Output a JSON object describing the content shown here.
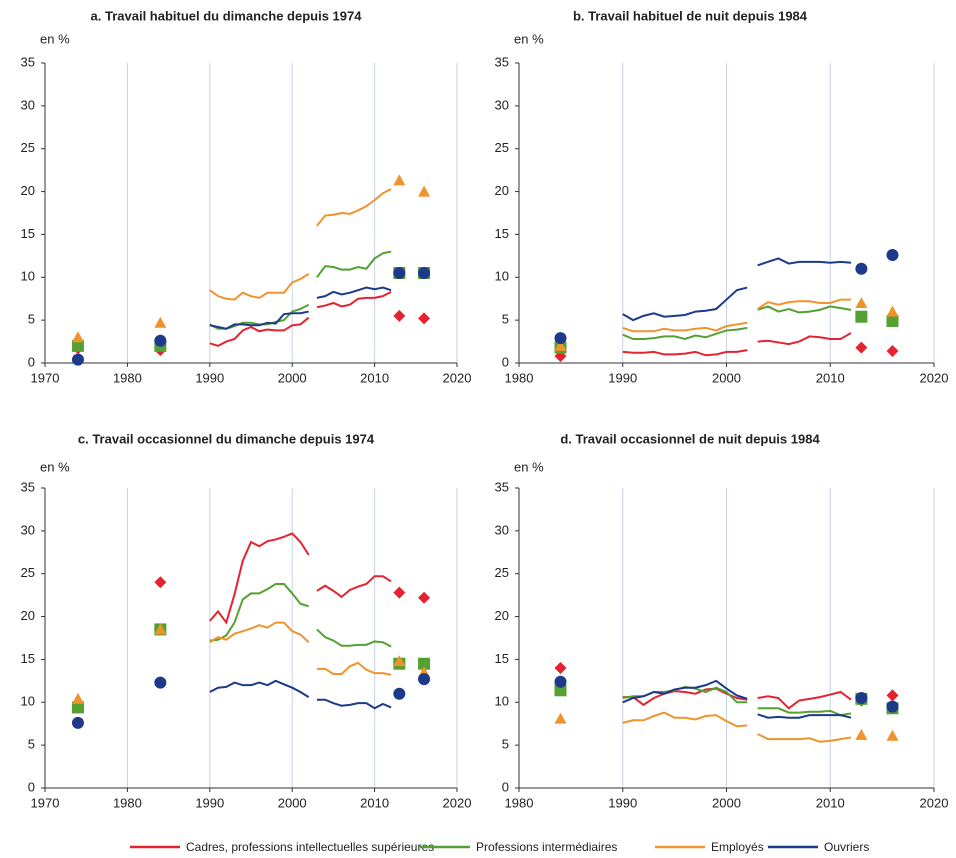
{
  "chart_data": [
    {
      "type": "line",
      "title": "a. Travail habituel du dimanche depuis 1974",
      "y_label": "en %",
      "xlim": [
        1970,
        2020
      ],
      "xticks": [
        1970,
        1980,
        1990,
        2000,
        2010,
        2020
      ],
      "ylim": [
        0,
        35
      ],
      "yticks": [
        0,
        5,
        10,
        15,
        20,
        25,
        30,
        35
      ],
      "grid": "vertical",
      "x": [
        1990,
        1991,
        1992,
        1993,
        1994,
        1995,
        1996,
        1997,
        1998,
        1999,
        2000,
        2001,
        2002,
        2003,
        2004,
        2005,
        2006,
        2007,
        2008,
        2009,
        2010,
        2011,
        2012
      ],
      "line_break_before": 2003,
      "points_x": [
        1974,
        1984,
        2013,
        2016
      ],
      "series": [
        {
          "name": "Cadres, professions intellectuelles supérieures",
          "color": "#e52330",
          "marker": "diamond",
          "values": [
            2.3,
            2.0,
            2.5,
            2.8,
            3.8,
            4.2,
            3.7,
            3.9,
            3.8,
            3.8,
            4.4,
            4.5,
            5.3,
            6.5,
            6.7,
            7.0,
            6.6,
            6.8,
            7.5,
            7.6,
            7.6,
            7.8,
            8.3
          ],
          "points": [
            1.7,
            1.5,
            5.5,
            5.2
          ]
        },
        {
          "name": "Professions intermédiaires",
          "color": "#54a032",
          "marker": "square",
          "values": [
            4.5,
            4.0,
            4.0,
            4.3,
            4.7,
            4.7,
            4.5,
            4.5,
            4.8,
            5.0,
            6.0,
            6.3,
            6.8,
            10.0,
            11.3,
            11.2,
            10.9,
            10.9,
            11.2,
            11.0,
            12.2,
            12.8,
            13.0
          ],
          "points": [
            2.0,
            2.0,
            10.5,
            10.5
          ]
        },
        {
          "name": "Employés",
          "color": "#ef932c",
          "marker": "triangle",
          "values": [
            8.5,
            7.8,
            7.5,
            7.4,
            8.2,
            7.8,
            7.6,
            8.2,
            8.2,
            8.2,
            9.4,
            9.8,
            10.4,
            16.0,
            17.2,
            17.3,
            17.5,
            17.4,
            17.8,
            18.3,
            19.0,
            19.8,
            20.3
          ],
          "points": [
            3.0,
            4.7,
            21.3,
            20.0
          ]
        },
        {
          "name": "Ouvriers",
          "color": "#1d3a8a",
          "marker": "circle",
          "values": [
            4.4,
            4.2,
            4.0,
            4.5,
            4.5,
            4.4,
            4.4,
            4.7,
            4.6,
            5.7,
            5.8,
            5.8,
            6.0,
            7.6,
            7.8,
            8.3,
            8.0,
            8.2,
            8.5,
            8.8,
            8.6,
            8.8,
            8.5
          ],
          "points": [
            0.4,
            2.6,
            10.5,
            10.5
          ]
        }
      ]
    },
    {
      "type": "line",
      "title": "b. Travail habituel de nuit depuis 1984",
      "y_label": "en %",
      "xlim": [
        1980,
        2020
      ],
      "xticks": [
        1980,
        1990,
        2000,
        2010,
        2020
      ],
      "ylim": [
        0,
        35
      ],
      "yticks": [
        0,
        5,
        10,
        15,
        20,
        25,
        30,
        35
      ],
      "grid": "vertical",
      "x": [
        1990,
        1991,
        1992,
        1993,
        1994,
        1995,
        1996,
        1997,
        1998,
        1999,
        2000,
        2001,
        2002,
        2003,
        2004,
        2005,
        2006,
        2007,
        2008,
        2009,
        2010,
        2011,
        2012
      ],
      "line_break_before": 2003,
      "points_x": [
        1984,
        2013,
        2016
      ],
      "series": [
        {
          "name": "Cadres, professions intellectuelles supérieures",
          "color": "#e52330",
          "marker": "diamond",
          "values": [
            1.3,
            1.2,
            1.2,
            1.3,
            1.0,
            1.0,
            1.1,
            1.3,
            0.9,
            1.0,
            1.3,
            1.3,
            1.5,
            2.5,
            2.6,
            2.4,
            2.2,
            2.5,
            3.1,
            3.0,
            2.8,
            2.8,
            3.5
          ],
          "points": [
            0.8,
            1.8,
            1.4
          ]
        },
        {
          "name": "Professions intermédiaires",
          "color": "#54a032",
          "marker": "square",
          "values": [
            3.3,
            2.8,
            2.8,
            2.9,
            3.1,
            3.1,
            2.8,
            3.2,
            3.0,
            3.4,
            3.8,
            3.9,
            4.1,
            6.2,
            6.6,
            6.0,
            6.3,
            5.9,
            6.0,
            6.2,
            6.6,
            6.4,
            6.2
          ],
          "points": [
            1.8,
            5.4,
            4.9
          ]
        },
        {
          "name": "Employés",
          "color": "#ef932c",
          "marker": "triangle",
          "values": [
            4.1,
            3.7,
            3.7,
            3.7,
            4.0,
            3.8,
            3.8,
            4.0,
            4.1,
            3.8,
            4.3,
            4.5,
            4.7,
            6.3,
            7.1,
            6.8,
            7.1,
            7.2,
            7.2,
            7.0,
            7.0,
            7.4,
            7.4
          ],
          "points": [
            2.0,
            7.0,
            6.0
          ]
        },
        {
          "name": "Ouvriers",
          "color": "#1d3a8a",
          "marker": "circle",
          "values": [
            5.7,
            5.0,
            5.5,
            5.8,
            5.4,
            5.5,
            5.6,
            6.0,
            6.1,
            6.3,
            7.4,
            8.5,
            8.8,
            11.4,
            11.8,
            12.2,
            11.6,
            11.8,
            11.8,
            11.8,
            11.7,
            11.8,
            11.7
          ],
          "points": [
            2.9,
            11.0,
            12.6
          ]
        }
      ]
    },
    {
      "type": "line",
      "title": "c. Travail occasionnel du dimanche depuis 1974",
      "y_label": "en %",
      "xlim": [
        1970,
        2020
      ],
      "xticks": [
        1970,
        1980,
        1990,
        2000,
        2010,
        2020
      ],
      "ylim": [
        0,
        35
      ],
      "yticks": [
        0,
        5,
        10,
        15,
        20,
        25,
        30,
        35
      ],
      "grid": "vertical",
      "x": [
        1990,
        1991,
        1992,
        1993,
        1994,
        1995,
        1996,
        1997,
        1998,
        1999,
        2000,
        2001,
        2002,
        2003,
        2004,
        2005,
        2006,
        2007,
        2008,
        2009,
        2010,
        2011,
        2012
      ],
      "line_break_before": 2003,
      "points_x": [
        1974,
        1984,
        2013,
        2016
      ],
      "series": [
        {
          "name": "Cadres, professions intellectuelles supérieures",
          "color": "#e52330",
          "marker": "diamond",
          "values": [
            19.5,
            20.6,
            19.3,
            22.6,
            26.5,
            28.7,
            28.2,
            28.8,
            29.0,
            29.3,
            29.7,
            28.7,
            27.2,
            23.0,
            23.6,
            23.0,
            22.3,
            23.1,
            23.5,
            23.8,
            24.7,
            24.7,
            24.1
          ],
          "points": [
            null,
            24.0,
            22.8,
            22.2
          ]
        },
        {
          "name": "Professions intermédiaires",
          "color": "#54a032",
          "marker": "square",
          "values": [
            17.2,
            17.3,
            17.8,
            19.3,
            22.0,
            22.7,
            22.7,
            23.2,
            23.8,
            23.8,
            22.7,
            21.5,
            21.2,
            18.5,
            17.6,
            17.2,
            16.6,
            16.6,
            16.7,
            16.7,
            17.1,
            17.0,
            16.5
          ],
          "points": [
            9.4,
            18.5,
            14.5,
            14.5
          ]
        },
        {
          "name": "Employés",
          "color": "#ef932c",
          "marker": "triangle",
          "values": [
            17.0,
            17.6,
            17.3,
            18.0,
            18.3,
            18.6,
            19.0,
            18.7,
            19.3,
            19.3,
            18.3,
            17.9,
            17.0,
            13.9,
            13.9,
            13.3,
            13.3,
            14.2,
            14.6,
            13.8,
            13.4,
            13.4,
            13.2
          ],
          "points": [
            10.4,
            18.5,
            14.8,
            13.5
          ]
        },
        {
          "name": "Ouvriers",
          "color": "#1d3a8a",
          "marker": "circle",
          "values": [
            11.2,
            11.7,
            11.8,
            12.3,
            12.0,
            12.0,
            12.3,
            12.0,
            12.5,
            12.1,
            11.7,
            11.2,
            10.6,
            10.3,
            10.3,
            9.9,
            9.6,
            9.7,
            9.9,
            9.9,
            9.3,
            9.8,
            9.4
          ],
          "points": [
            7.6,
            12.3,
            11.0,
            12.7
          ]
        }
      ]
    },
    {
      "type": "line",
      "title": "d. Travail occasionnel de nuit depuis 1984",
      "y_label": "en %",
      "xlim": [
        1980,
        2020
      ],
      "xticks": [
        1980,
        1990,
        2000,
        2010,
        2020
      ],
      "ylim": [
        0,
        35
      ],
      "yticks": [
        0,
        5,
        10,
        15,
        20,
        25,
        30,
        35
      ],
      "grid": "vertical",
      "x": [
        1990,
        1991,
        1992,
        1993,
        1994,
        1995,
        1996,
        1997,
        1998,
        1999,
        2000,
        2001,
        2002,
        2003,
        2004,
        2005,
        2006,
        2007,
        2008,
        2009,
        2010,
        2011,
        2012
      ],
      "line_break_before": 2003,
      "points_x": [
        1984,
        2013,
        2016
      ],
      "series": [
        {
          "name": "Cadres, professions intellectuelles supérieures",
          "color": "#e52330",
          "marker": "diamond",
          "values": [
            10.6,
            10.6,
            9.7,
            10.5,
            11.0,
            11.3,
            11.2,
            11.0,
            11.5,
            11.6,
            11.0,
            10.5,
            10.3,
            10.5,
            10.7,
            10.5,
            9.3,
            10.2,
            10.4,
            10.6,
            10.9,
            11.2,
            10.3
          ],
          "points": [
            14.0,
            10.2,
            10.8
          ]
        },
        {
          "name": "Professions intermédiaires",
          "color": "#54a032",
          "marker": "square",
          "values": [
            10.5,
            10.7,
            10.7,
            11.2,
            11.2,
            11.4,
            11.8,
            11.6,
            11.2,
            11.7,
            11.2,
            10.0,
            10.0,
            9.3,
            9.3,
            9.3,
            8.8,
            8.8,
            8.9,
            8.9,
            9.0,
            8.5,
            8.7
          ],
          "points": [
            11.4,
            10.4,
            9.3
          ]
        },
        {
          "name": "Employés",
          "color": "#ef932c",
          "marker": "triangle",
          "values": [
            7.6,
            7.9,
            7.9,
            8.4,
            8.8,
            8.2,
            8.2,
            8.0,
            8.4,
            8.5,
            7.8,
            7.2,
            7.3,
            6.3,
            5.7,
            5.7,
            5.7,
            5.7,
            5.8,
            5.4,
            5.5,
            5.7,
            5.9
          ],
          "points": [
            8.1,
            6.2,
            6.1
          ]
        },
        {
          "name": "Ouvriers",
          "color": "#1d3a8a",
          "marker": "circle",
          "values": [
            10.0,
            10.5,
            10.7,
            11.2,
            11.0,
            11.5,
            11.7,
            11.7,
            12.0,
            12.5,
            11.6,
            10.8,
            10.4,
            8.6,
            8.2,
            8.3,
            8.2,
            8.2,
            8.5,
            8.5,
            8.5,
            8.5,
            8.2
          ],
          "points": [
            12.4,
            10.5,
            9.5
          ]
        }
      ]
    }
  ]
}
